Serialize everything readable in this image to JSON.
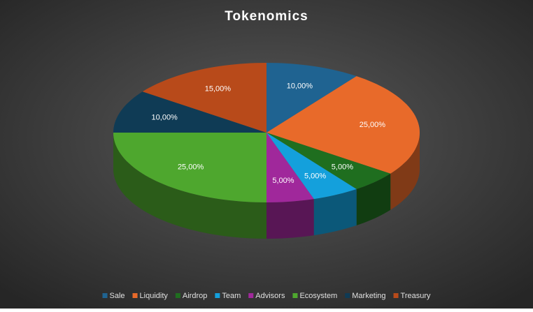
{
  "chart_data": {
    "type": "pie3d",
    "title": "Tokenomics",
    "categories": [
      "Sale",
      "Liquidity",
      "Airdrop",
      "Team",
      "Advisors",
      "Ecosystem",
      "Marketing",
      "Treasury"
    ],
    "values": [
      10,
      25,
      5,
      5,
      5,
      25,
      10,
      15
    ],
    "value_labels": [
      "10,00%",
      "25,00%",
      "5,00%",
      "5,00%",
      "5,00%",
      "25,00%",
      "10,00%",
      "15,00%"
    ],
    "colors": [
      "#1f6391",
      "#e86a2a",
      "#1f6e1f",
      "#14a0dc",
      "#a0289b",
      "#4ea72e",
      "#0f3b55",
      "#b84a1a"
    ],
    "legend": "bottom"
  }
}
